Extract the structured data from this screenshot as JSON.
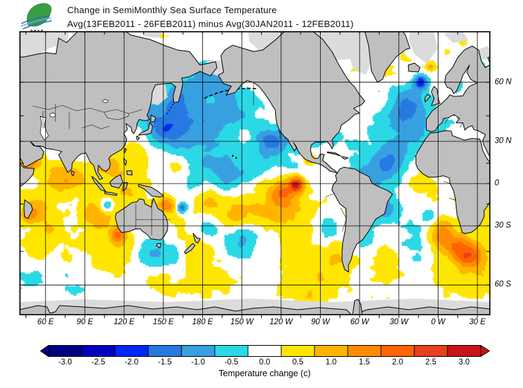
{
  "header": {
    "title_line1": "Change in SemiMonthly Sea Surface Temperature",
    "title_line2": "Avg(13FEB2011 - 26FEB2011) minus Avg(30JAN2011 - 12FEB2011)"
  },
  "map": {
    "lat_ticks": [
      {
        "text": "60 N",
        "lat": 60
      },
      {
        "text": "30 N",
        "lat": 30
      },
      {
        "text": "0",
        "lat": 0
      },
      {
        "text": "30 S",
        "lat": -30
      },
      {
        "text": "60 S",
        "lat": -60
      }
    ],
    "lon_ticks": [
      {
        "text": "60 E",
        "lon": 60
      },
      {
        "text": "90 E",
        "lon": 90
      },
      {
        "text": "120 E",
        "lon": 120
      },
      {
        "text": "150 E",
        "lon": 150
      },
      {
        "text": "180 E",
        "lon": 180
      },
      {
        "text": "150 W",
        "lon": 210
      },
      {
        "text": "120 W",
        "lon": 240
      },
      {
        "text": "90 W",
        "lon": 270
      },
      {
        "text": "60 W",
        "lon": 300
      },
      {
        "text": "30 W",
        "lon": 330
      },
      {
        "text": "0 W",
        "lon": 360
      },
      {
        "text": "30 E",
        "lon": 390
      }
    ],
    "colors": {
      "ocean": "#FFFFFF",
      "land": "#BFBFBF",
      "ice": "#DBDBDB",
      "coast": "#000000",
      "grid": "#000000"
    }
  },
  "colorbar": {
    "label": "Temperature change  (c)",
    "ticks": [
      "-3.0",
      "-2.5",
      "-2.0",
      "-1.5",
      "-1.0",
      "-0.5",
      "0.0",
      "0.5",
      "1.0",
      "1.5",
      "2.0",
      "2.5",
      "3.0"
    ],
    "colors": [
      "#000080",
      "#0000BE",
      "#0028F5",
      "#2878E1",
      "#37A0E1",
      "#2BD9E6",
      "#FFFFFF",
      "#FFE600",
      "#FFB400",
      "#FF8C00",
      "#FF6400",
      "#E6401E",
      "#C81414"
    ]
  }
}
